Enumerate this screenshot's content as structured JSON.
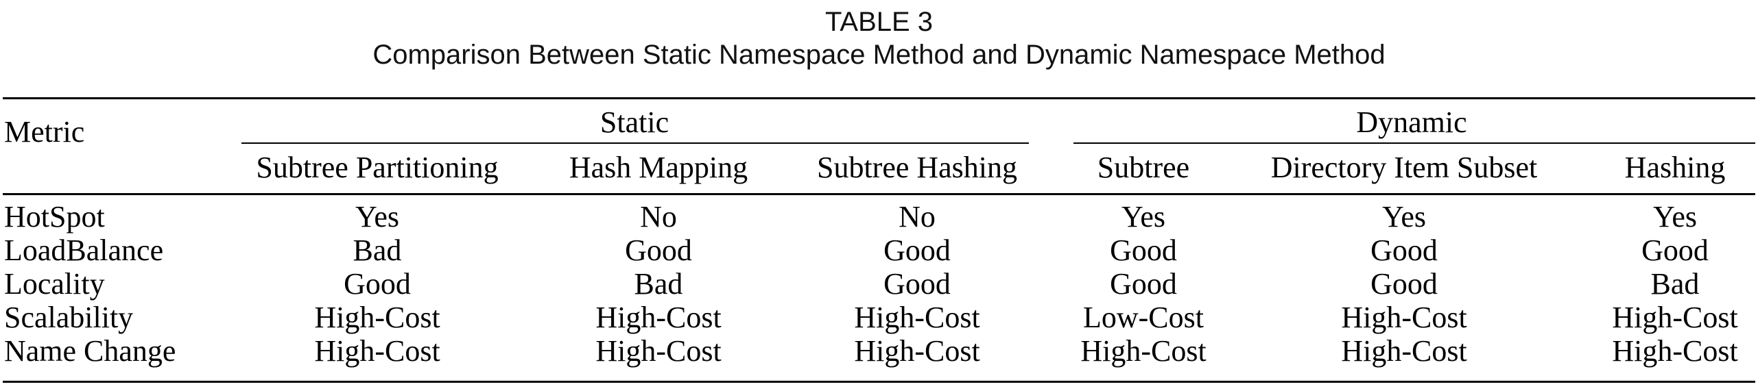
{
  "caption": {
    "label": "TABLE 3",
    "title": "Comparison Between Static Namespace Method and Dynamic Namespace Method"
  },
  "table": {
    "metric_header": "Metric",
    "groups": [
      {
        "label": "Static"
      },
      {
        "label": "Dynamic"
      }
    ],
    "columns": [
      "Subtree Partitioning",
      "Hash Mapping",
      "Subtree Hashing",
      "Subtree",
      "Directory Item Subset",
      "Hashing"
    ],
    "rows": [
      {
        "metric": "HotSpot",
        "values": [
          "Yes",
          "No",
          "No",
          "Yes",
          "Yes",
          "Yes"
        ]
      },
      {
        "metric": "LoadBalance",
        "values": [
          "Bad",
          "Good",
          "Good",
          "Good",
          "Good",
          "Good"
        ]
      },
      {
        "metric": "Locality",
        "values": [
          "Good",
          "Bad",
          "Good",
          "Good",
          "Good",
          "Bad"
        ]
      },
      {
        "metric": "Scalability",
        "values": [
          "High-Cost",
          "High-Cost",
          "High-Cost",
          "Low-Cost",
          "High-Cost",
          "High-Cost"
        ]
      },
      {
        "metric": "Name Change",
        "values": [
          "High-Cost",
          "High-Cost",
          "High-Cost",
          "High-Cost",
          "High-Cost",
          "High-Cost"
        ]
      }
    ]
  }
}
